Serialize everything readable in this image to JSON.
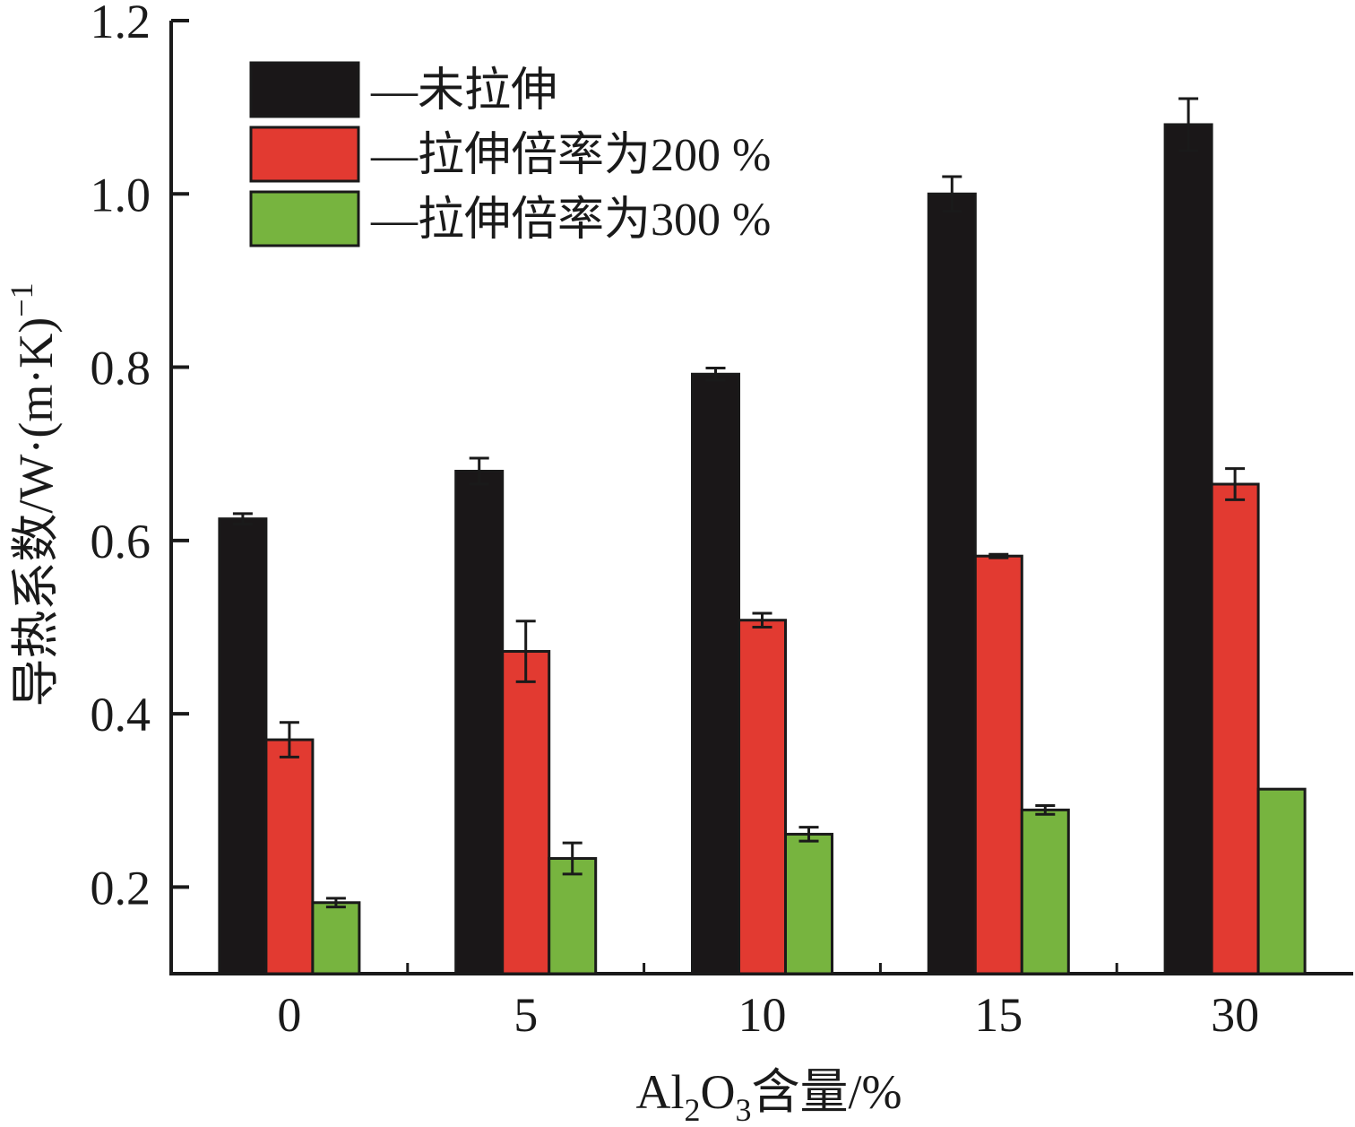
{
  "chart_data": {
    "type": "bar",
    "categories": [
      "0",
      "5",
      "10",
      "15",
      "30"
    ],
    "series": [
      {
        "name": "—未拉伸",
        "color": "#1a1718",
        "values": [
          0.625,
          0.68,
          0.792,
          1.0,
          1.08
        ],
        "errors": [
          0.006,
          0.015,
          0.007,
          0.02,
          0.03
        ]
      },
      {
        "name": "—拉伸倍率为200 %",
        "color": "#e23a31",
        "values": [
          0.37,
          0.472,
          0.508,
          0.582,
          0.665
        ],
        "errors": [
          0.02,
          0.035,
          0.008,
          0.002,
          0.018
        ]
      },
      {
        "name": "—拉伸倍率为300 %",
        "color": "#77b43f",
        "values": [
          0.182,
          0.233,
          0.261,
          0.289,
          0.313
        ],
        "errors": [
          0.005,
          0.018,
          0.008,
          0.005,
          0.0
        ]
      }
    ],
    "ylim": [
      0.1,
      1.2
    ],
    "yticks": [
      "0.2",
      "0.4",
      "0.6",
      "0.8",
      "1.0",
      "1.2"
    ],
    "ylabel": {
      "text": "导热系数/W·(m·K)",
      "sup": "−1"
    },
    "xlabel": {
      "pre": "Al",
      "sub1": "2",
      "mid": "O",
      "sub2": "3",
      "post": "含量/%"
    },
    "legend_position": "top-left",
    "grid": false
  }
}
